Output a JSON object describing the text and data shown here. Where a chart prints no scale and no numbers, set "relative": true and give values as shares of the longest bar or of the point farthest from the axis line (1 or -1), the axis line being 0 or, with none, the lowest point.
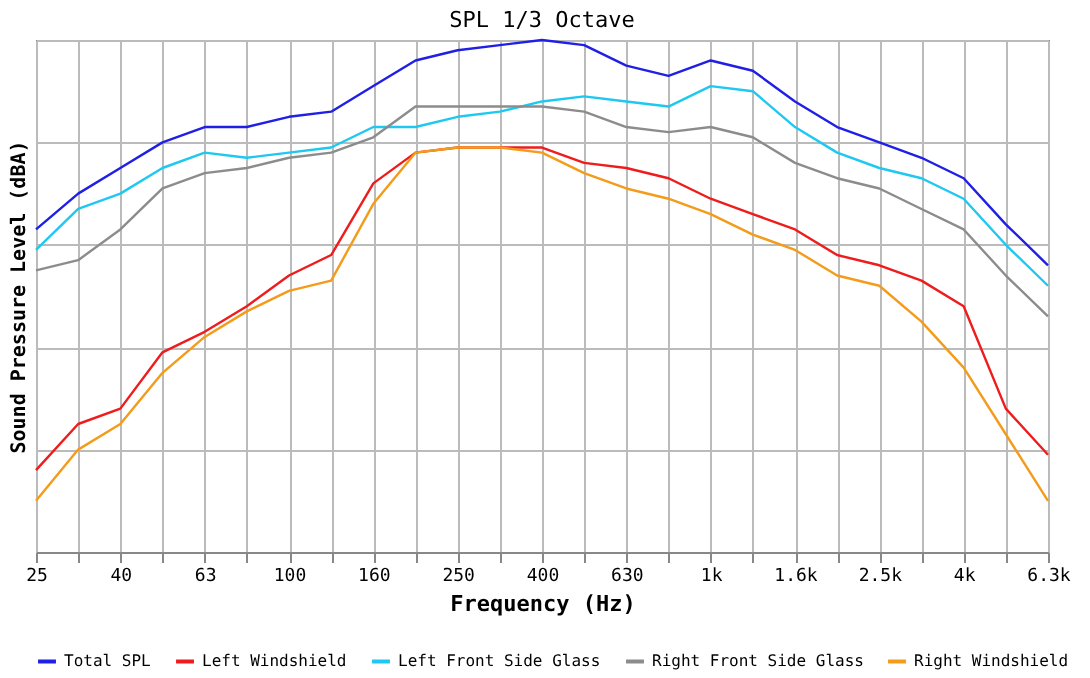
{
  "chart_data": {
    "type": "line",
    "title": "SPL 1/3 Octave",
    "xlabel": "Frequency (Hz)",
    "ylabel": "Sound Pressure Level (dBA)",
    "relative": true,
    "grid": true,
    "legend": "bottom",
    "line_style": "solid",
    "marker": "none",
    "categories": [
      "25",
      null,
      "40",
      null,
      "63",
      null,
      "100",
      null,
      "160",
      null,
      "250",
      null,
      "400",
      null,
      "630",
      null,
      "1k",
      null,
      "1.6k",
      null,
      "2.5k",
      null,
      "4k",
      null,
      "6.3k"
    ],
    "series": [
      {
        "name": "Total SPL",
        "color": "#1f1fe6",
        "values": [
          0.63,
          0.7,
          0.75,
          0.8,
          0.83,
          0.83,
          0.85,
          0.86,
          0.91,
          0.96,
          0.98,
          0.99,
          1,
          0.99,
          0.95,
          0.93,
          0.96,
          0.94,
          0.88,
          0.83,
          0.8,
          0.77,
          0.73,
          0.64,
          0.56
        ]
      },
      {
        "name": "Left Windshield",
        "color": "#ee1c1c",
        "values": [
          0.16,
          0.25,
          0.28,
          0.39,
          0.43,
          0.48,
          0.54,
          0.58,
          0.72,
          0.78,
          0.79,
          0.79,
          0.79,
          0.76,
          0.75,
          0.73,
          0.69,
          0.66,
          0.63,
          0.58,
          0.56,
          0.53,
          0.48,
          0.28,
          0.19
        ]
      },
      {
        "name": "Left Front Side Glass",
        "color": "#1ec8f0",
        "values": [
          0.59,
          0.67,
          0.7,
          0.75,
          0.78,
          0.77,
          0.78,
          0.79,
          0.83,
          0.83,
          0.85,
          0.86,
          0.88,
          0.89,
          0.88,
          0.87,
          0.91,
          0.9,
          0.83,
          0.78,
          0.75,
          0.73,
          0.69,
          0.6,
          0.52
        ]
      },
      {
        "name": "Right Front Side Glass",
        "color": "#8c8c8c",
        "values": [
          0.55,
          0.57,
          0.63,
          0.71,
          0.74,
          0.75,
          0.77,
          0.78,
          0.81,
          0.87,
          0.87,
          0.87,
          0.87,
          0.86,
          0.83,
          0.82,
          0.83,
          0.81,
          0.76,
          0.73,
          0.71,
          0.67,
          0.63,
          0.54,
          0.46
        ]
      },
      {
        "name": "Right Windshield",
        "color": "#f39b1a",
        "values": [
          0.1,
          0.2,
          0.25,
          0.35,
          0.42,
          0.47,
          0.51,
          0.53,
          0.68,
          0.78,
          0.79,
          0.79,
          0.78,
          0.74,
          0.71,
          0.69,
          0.66,
          0.62,
          0.59,
          0.54,
          0.52,
          0.45,
          0.36,
          0.23,
          0.1
        ]
      }
    ]
  }
}
